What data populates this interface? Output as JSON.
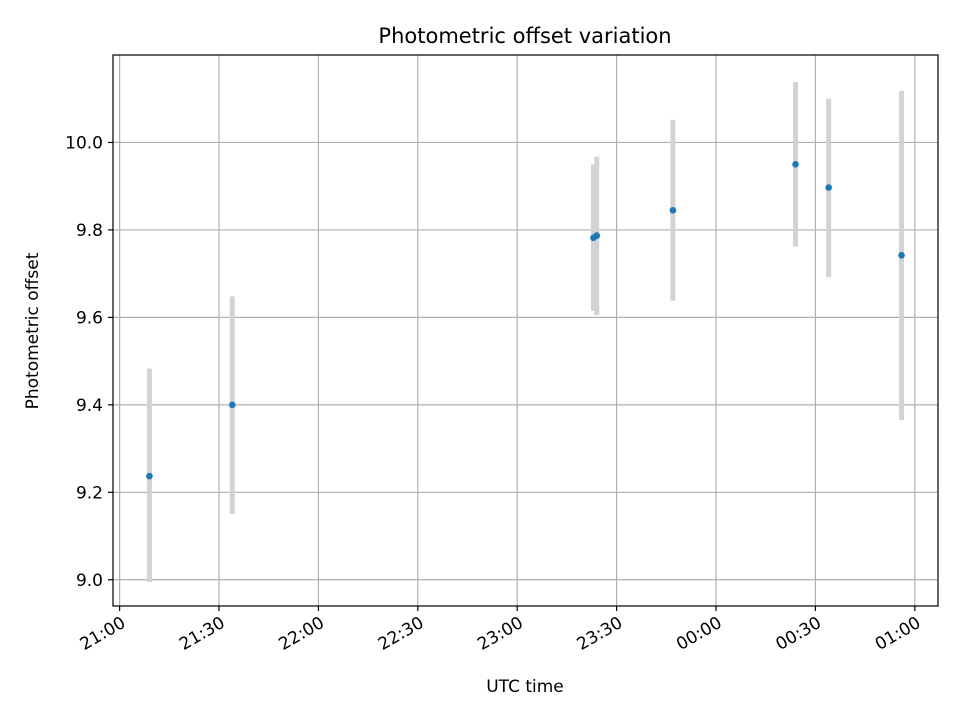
{
  "chart_data": {
    "type": "scatter",
    "title": "Photometric offset variation",
    "xlabel": "UTC time",
    "ylabel": "Photometric offset",
    "x_tick_labels": [
      "21:00",
      "21:30",
      "22:00",
      "22:30",
      "23:00",
      "23:30",
      "00:00",
      "00:30",
      "01:00"
    ],
    "y_tick_labels": [
      "9.0",
      "9.2",
      "9.4",
      "9.6",
      "9.8",
      "10.0"
    ],
    "y_ticks": [
      9.0,
      9.2,
      9.4,
      9.6,
      9.8,
      10.0
    ],
    "xlim": [
      "20:58",
      "01:07"
    ],
    "ylim": [
      8.94,
      10.2
    ],
    "grid": true,
    "colors": {
      "point": "#1f77b4",
      "errorbar": "#d3d3d3",
      "grid": "#b0b0b0"
    },
    "points": [
      {
        "time": "21:09",
        "y": 9.237,
        "err_low": 8.995,
        "err_high": 9.483
      },
      {
        "time": "21:34",
        "y": 9.4,
        "err_low": 9.15,
        "err_high": 9.648
      },
      {
        "time": "23:23",
        "y": 9.782,
        "err_low": 9.615,
        "err_high": 9.95
      },
      {
        "time": "23:24",
        "y": 9.787,
        "err_low": 9.605,
        "err_high": 9.968
      },
      {
        "time": "23:47",
        "y": 9.845,
        "err_low": 9.638,
        "err_high": 10.052
      },
      {
        "time": "00:24",
        "y": 9.95,
        "err_low": 9.762,
        "err_high": 10.138
      },
      {
        "time": "00:34",
        "y": 9.897,
        "err_low": 9.692,
        "err_high": 10.1
      },
      {
        "time": "00:56",
        "y": 9.742,
        "err_low": 9.365,
        "err_high": 10.118
      }
    ]
  }
}
